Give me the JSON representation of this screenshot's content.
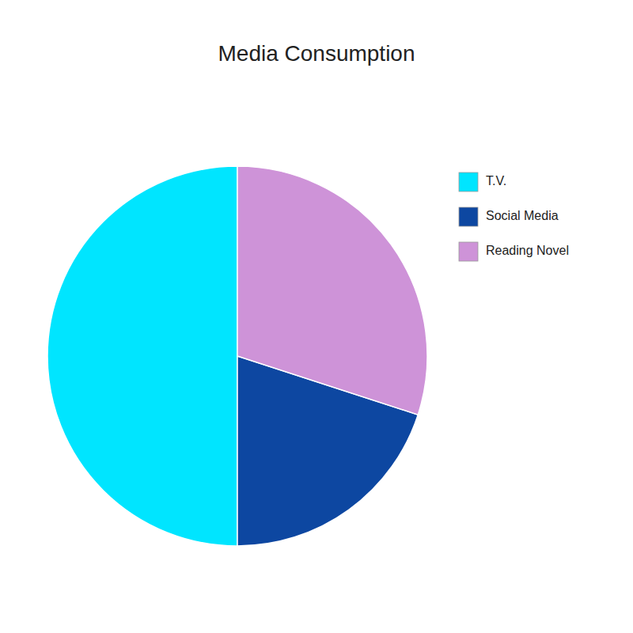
{
  "chart_data": {
    "type": "pie",
    "title": "Media Consumption",
    "categories": [
      "T.V.",
      "Social Media",
      "Reading Novel"
    ],
    "values": [
      50,
      20,
      30
    ],
    "colors": [
      "#00E5FF",
      "#0D47A1",
      "#CE93D8"
    ],
    "legend": "right"
  }
}
